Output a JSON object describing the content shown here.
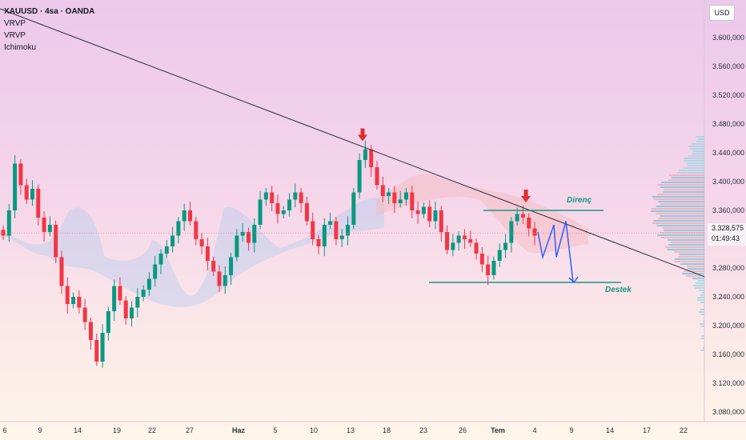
{
  "header": {
    "symbol": "XAUUSD · 4sa · OANDA",
    "indicators": [
      "VRVP",
      "VRVP",
      "Ichimoku"
    ],
    "currency": "USD"
  },
  "price_badge": {
    "price": "3.328,575",
    "countdown": "01:49:43"
  },
  "chart_data": {
    "type": "candlestick",
    "y_axis": {
      "min": 3070000,
      "max": 3650000,
      "side": "right",
      "ticks": [
        "3.080,000",
        "3.120,000",
        "3.160,000",
        "3.200,000",
        "3.240,000",
        "3.280,000",
        "3.320,000",
        "3.360,000",
        "3.400,000",
        "3.440,000",
        "3.480,000",
        "3.520,000",
        "3.560,000",
        "3.600,000"
      ],
      "tick_values": [
        3080000,
        3120000,
        3160000,
        3200000,
        3240000,
        3280000,
        3320000,
        3360000,
        3400000,
        3440000,
        3480000,
        3520000,
        3560000,
        3600000
      ]
    },
    "x_axis": {
      "ticks": [
        "6",
        "9",
        "14",
        "19",
        "22",
        "27",
        "Haz",
        "5",
        "10",
        "13",
        "18",
        "23",
        "26",
        "Tem",
        "4",
        "9",
        "14",
        "17",
        "22"
      ],
      "bold_ticks": [
        "Haz",
        "Tem"
      ]
    },
    "current_price": 3328575,
    "closes": [
      3325000,
      3360000,
      3425000,
      3395000,
      3375000,
      3390000,
      3350000,
      3330000,
      3340000,
      3295000,
      3255000,
      3230000,
      3240000,
      3225000,
      3205000,
      3180000,
      3150000,
      3190000,
      3220000,
      3255000,
      3235000,
      3210000,
      3225000,
      3240000,
      3250000,
      3265000,
      3285000,
      3300000,
      3310000,
      3325000,
      3345000,
      3360000,
      3345000,
      3320000,
      3310000,
      3290000,
      3275000,
      3255000,
      3270000,
      3295000,
      3325000,
      3330000,
      3315000,
      3340000,
      3375000,
      3385000,
      3370000,
      3355000,
      3360000,
      3375000,
      3385000,
      3370000,
      3345000,
      3320000,
      3310000,
      3340000,
      3345000,
      3320000,
      3325000,
      3340000,
      3385000,
      3430000,
      3445000,
      3420000,
      3395000,
      3380000,
      3385000,
      3370000,
      3375000,
      3385000,
      3360000,
      3355000,
      3365000,
      3345000,
      3360000,
      3330000,
      3305000,
      3315000,
      3325000,
      3320000,
      3315000,
      3300000,
      3285000,
      3270000,
      3290000,
      3305000,
      3315000,
      3345000,
      3355000,
      3350000,
      3335000,
      3325000
    ],
    "annotations": {
      "trendline": {
        "from": [
          "6",
          3640000
        ],
        "to": [
          "22",
          3275000
        ]
      },
      "resistance": {
        "label": "Direnç",
        "price": 3360000
      },
      "support": {
        "label": "Destek",
        "price": 3260000
      },
      "peaks": [
        {
          "x": "13",
          "price": 3445000
        },
        {
          "x": "Tem",
          "price": 3360000
        }
      ],
      "projection": [
        3330000,
        3295000,
        3340000,
        3295000,
        3345000,
        3260000
      ]
    },
    "colors": {
      "up": "#089981",
      "down": "#f23645",
      "trendline": "#2a2e39",
      "annotation": "#159b82",
      "projection": "#2962ff",
      "arrow": "#e02c2c",
      "cloud_bull": "#b9cdf0",
      "cloud_bear": "#f6b8bd"
    }
  }
}
